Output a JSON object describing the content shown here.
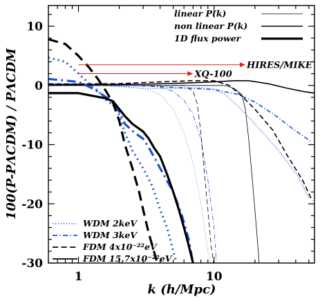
{
  "chart_data": {
    "type": "line",
    "xlabel": "k (h/Mpc)",
    "ylabel": "100(P-PΛCDM) / PΛCDM",
    "xlim": [
      0.6,
      55
    ],
    "ylim": [
      -30,
      13.5
    ],
    "x_scale": "log",
    "grid": false,
    "x_ticks": [
      1,
      10
    ],
    "y_ticks": [
      10,
      0,
      -10,
      -20,
      -30
    ],
    "style_legend": {
      "placement": "top-right",
      "entries": [
        {
          "label": "linear P(k)",
          "width": "thin"
        },
        {
          "label": "non linear P(k)",
          "width": "medium"
        },
        {
          "label": "1D flux power",
          "width": "thick"
        }
      ]
    },
    "model_legend": {
      "placement": "bottom-left",
      "entries": [
        {
          "label": "WDM 2keV",
          "dash": "dotted",
          "color": "#1a50d8"
        },
        {
          "label": "WDM 3keV",
          "dash": "dashdot",
          "color": "#1a50d8"
        },
        {
          "label": "FDM 4x10⁻²²eV",
          "dash": "dashed",
          "color": "#000000"
        },
        {
          "label": "FDM 15,7x10⁻²²eV",
          "dash": "solid",
          "color": "#000000"
        }
      ]
    },
    "annotations": [
      {
        "label": "HIRES/MIKE",
        "k_range": [
          1.0,
          17.0
        ],
        "y": 3.5,
        "color": "#e02020"
      },
      {
        "label": "XQ-100",
        "k_range": [
          1.0,
          7.0
        ],
        "y": 2.0,
        "color": "#e02020"
      }
    ],
    "series": [
      {
        "model": "WDM 2keV",
        "kind": "linear",
        "points": [
          [
            0.6,
            0
          ],
          [
            2,
            0
          ],
          [
            3,
            -0.5
          ],
          [
            4,
            -1.5
          ],
          [
            5,
            -4
          ],
          [
            6,
            -8
          ],
          [
            7,
            -13
          ],
          [
            8,
            -20
          ],
          [
            9,
            -28
          ],
          [
            9.4,
            -30
          ]
        ]
      },
      {
        "model": "WDM 3keV",
        "kind": "linear",
        "points": [
          [
            0.6,
            0
          ],
          [
            3,
            0
          ],
          [
            4,
            -0.3
          ],
          [
            5,
            -1
          ],
          [
            6,
            -2.5
          ],
          [
            7,
            -5
          ],
          [
            8,
            -9
          ],
          [
            9,
            -16
          ],
          [
            10,
            -24
          ],
          [
            10.4,
            -30
          ]
        ]
      },
      {
        "model": "FDM 4x10⁻²²eV",
        "kind": "linear",
        "points": [
          [
            0.6,
            0
          ],
          [
            5,
            0
          ],
          [
            6,
            0
          ],
          [
            7,
            -1
          ],
          [
            7.5,
            -3
          ],
          [
            8,
            -8
          ],
          [
            8.5,
            -15
          ],
          [
            9,
            -21
          ],
          [
            9.5,
            -27
          ],
          [
            9.9,
            -30
          ]
        ]
      },
      {
        "model": "FDM 15,7x10⁻²²eV",
        "kind": "linear",
        "points": [
          [
            0.6,
            0
          ],
          [
            12,
            0
          ],
          [
            14,
            -0.5
          ],
          [
            16,
            -1.5
          ],
          [
            17,
            -4
          ],
          [
            18,
            -9
          ],
          [
            19,
            -15
          ],
          [
            20,
            -21
          ],
          [
            21,
            -27
          ],
          [
            21.5,
            -30
          ]
        ]
      },
      {
        "model": "WDM 2keV",
        "kind": "non-linear",
        "points": [
          [
            0.6,
            0.3
          ],
          [
            1,
            0.3
          ],
          [
            2,
            -0.2
          ],
          [
            3,
            -0.5
          ],
          [
            5,
            -0.5
          ],
          [
            8,
            -0.4
          ],
          [
            10,
            -0.6
          ],
          [
            12,
            -1.5
          ],
          [
            15,
            -3.5
          ],
          [
            20,
            -6.5
          ],
          [
            30,
            -11
          ],
          [
            42,
            -15.5
          ],
          [
            50,
            -19
          ]
        ]
      },
      {
        "model": "WDM 3keV",
        "kind": "non-linear",
        "points": [
          [
            0.6,
            0.3
          ],
          [
            2,
            0.1
          ],
          [
            4,
            -0.2
          ],
          [
            7,
            -0.5
          ],
          [
            10,
            -0.7
          ],
          [
            15,
            -1.5
          ],
          [
            20,
            -2.8
          ],
          [
            28,
            -5
          ],
          [
            38,
            -7.3
          ],
          [
            52,
            -9.5
          ]
        ]
      },
      {
        "model": "FDM 4x10⁻²²eV",
        "kind": "non-linear",
        "points": [
          [
            0.6,
            0.2
          ],
          [
            2,
            0.3
          ],
          [
            4,
            0.6
          ],
          [
            7,
            0.8
          ],
          [
            10,
            0.8
          ],
          [
            13,
            0
          ],
          [
            16,
            -1.8
          ],
          [
            20,
            -4
          ],
          [
            27,
            -7.5
          ],
          [
            35,
            -12
          ],
          [
            45,
            -16
          ],
          [
            53,
            -19.5
          ]
        ]
      },
      {
        "model": "FDM 15,7x10⁻²²eV",
        "kind": "non-linear",
        "points": [
          [
            0.6,
            0.1
          ],
          [
            3,
            0.2
          ],
          [
            6,
            0.4
          ],
          [
            10,
            0.6
          ],
          [
            14,
            0.8
          ],
          [
            18,
            0.8
          ],
          [
            25,
            0.3
          ],
          [
            35,
            -0.5
          ],
          [
            45,
            -1
          ],
          [
            55,
            -1.3
          ]
        ]
      },
      {
        "model": "WDM 2keV",
        "kind": "1D flux",
        "points": [
          [
            0.6,
            4.7
          ],
          [
            0.8,
            4
          ],
          [
            1,
            2
          ],
          [
            1.2,
            0.3
          ],
          [
            1.4,
            -1
          ],
          [
            1.6,
            -2.5
          ],
          [
            1.8,
            -3.3
          ],
          [
            2,
            -5
          ],
          [
            2.2,
            -8
          ],
          [
            2.5,
            -11
          ],
          [
            3,
            -14
          ],
          [
            3.5,
            -17
          ],
          [
            4,
            -21
          ],
          [
            4.5,
            -24
          ],
          [
            5,
            -28
          ],
          [
            5.3,
            -30
          ]
        ]
      },
      {
        "model": "WDM 3keV",
        "kind": "1D flux",
        "points": [
          [
            0.6,
            1.1
          ],
          [
            1,
            0.6
          ],
          [
            1.3,
            -0.6
          ],
          [
            1.6,
            -2
          ],
          [
            1.8,
            -2.7
          ],
          [
            2,
            -4.5
          ],
          [
            2.2,
            -6.5
          ],
          [
            2.6,
            -8
          ],
          [
            3,
            -9
          ],
          [
            3.4,
            -11
          ],
          [
            4,
            -14
          ],
          [
            5,
            -18
          ],
          [
            5.8,
            -22
          ],
          [
            6.5,
            -26
          ],
          [
            7,
            -30
          ]
        ]
      },
      {
        "model": "FDM 4x10⁻²²eV",
        "kind": "1D flux",
        "points": [
          [
            0.6,
            7.8
          ],
          [
            0.8,
            7
          ],
          [
            1,
            5
          ],
          [
            1.2,
            3
          ],
          [
            1.4,
            1
          ],
          [
            1.6,
            -1
          ],
          [
            1.8,
            -3
          ],
          [
            2,
            -6
          ],
          [
            2.2,
            -10
          ],
          [
            2.5,
            -14
          ],
          [
            2.8,
            -18
          ],
          [
            3,
            -21
          ],
          [
            3.3,
            -25
          ],
          [
            3.6,
            -28
          ],
          [
            3.8,
            -30
          ]
        ]
      },
      {
        "model": "FDM 15,7x10⁻²²eV",
        "kind": "1D flux",
        "points": [
          [
            0.6,
            -1.3
          ],
          [
            1,
            -1.3
          ],
          [
            1.3,
            -1.8
          ],
          [
            1.6,
            -2.2
          ],
          [
            1.8,
            -2.7
          ],
          [
            2,
            -4
          ],
          [
            2.2,
            -5.2
          ],
          [
            2.5,
            -6.5
          ],
          [
            2.8,
            -7.3
          ],
          [
            3,
            -7.8
          ],
          [
            3.3,
            -9
          ],
          [
            3.6,
            -10.5
          ],
          [
            4,
            -12
          ],
          [
            4.5,
            -15
          ],
          [
            5,
            -18
          ],
          [
            5.5,
            -21
          ],
          [
            6,
            -24
          ],
          [
            6.5,
            -27
          ],
          [
            7,
            -30
          ]
        ]
      }
    ]
  }
}
